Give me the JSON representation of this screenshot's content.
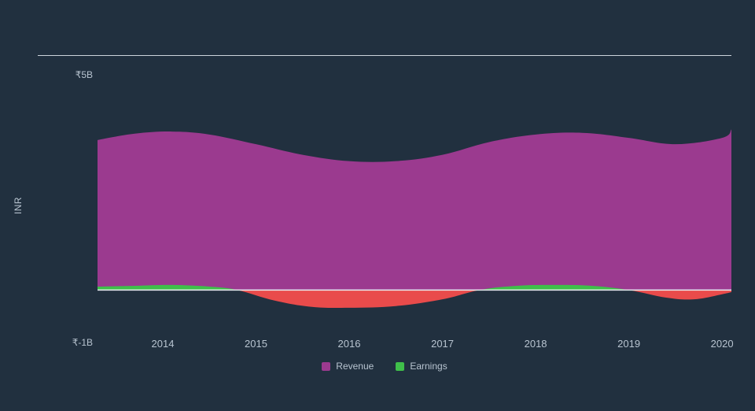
{
  "chart": {
    "type": "area",
    "background_color": "#21303f",
    "divider_color": "#cdd4db",
    "ylabel": "INR",
    "label_fontsize": 12,
    "label_color": "#b8c4d0",
    "ylim": [
      -1,
      5
    ],
    "ymin_label": "₹-1B",
    "ymax_label": "₹5B",
    "zero_line_color": "#e8edf1",
    "zero_line_width": 1.5,
    "x_years": [
      2014,
      2015,
      2016,
      2017,
      2018,
      2019,
      2020
    ],
    "x_range": [
      2013.3,
      2020.1
    ],
    "series": [
      {
        "name": "Revenue",
        "color": "#9b3a8f",
        "data": [
          {
            "x": 2013.3,
            "y": 3.55
          },
          {
            "x": 2013.7,
            "y": 3.7
          },
          {
            "x": 2014.1,
            "y": 3.75
          },
          {
            "x": 2014.5,
            "y": 3.68
          },
          {
            "x": 2015.0,
            "y": 3.45
          },
          {
            "x": 2015.5,
            "y": 3.2
          },
          {
            "x": 2016.0,
            "y": 3.05
          },
          {
            "x": 2016.5,
            "y": 3.05
          },
          {
            "x": 2017.0,
            "y": 3.2
          },
          {
            "x": 2017.5,
            "y": 3.5
          },
          {
            "x": 2018.0,
            "y": 3.68
          },
          {
            "x": 2018.5,
            "y": 3.72
          },
          {
            "x": 2019.0,
            "y": 3.6
          },
          {
            "x": 2019.5,
            "y": 3.45
          },
          {
            "x": 2020.0,
            "y": 3.6
          },
          {
            "x": 2020.1,
            "y": 3.8
          }
        ]
      },
      {
        "name": "Earnings",
        "color_positive": "#3fbf4a",
        "color_negative": "#e94b4b",
        "data": [
          {
            "x": 2013.3,
            "y": 0.08
          },
          {
            "x": 2013.7,
            "y": 0.1
          },
          {
            "x": 2014.1,
            "y": 0.12
          },
          {
            "x": 2014.5,
            "y": 0.08
          },
          {
            "x": 2014.8,
            "y": 0.0
          },
          {
            "x": 2015.2,
            "y": -0.25
          },
          {
            "x": 2015.6,
            "y": -0.4
          },
          {
            "x": 2016.0,
            "y": -0.42
          },
          {
            "x": 2016.5,
            "y": -0.38
          },
          {
            "x": 2017.0,
            "y": -0.22
          },
          {
            "x": 2017.4,
            "y": 0.0
          },
          {
            "x": 2017.8,
            "y": 0.1
          },
          {
            "x": 2018.2,
            "y": 0.12
          },
          {
            "x": 2018.6,
            "y": 0.1
          },
          {
            "x": 2019.0,
            "y": 0.0
          },
          {
            "x": 2019.4,
            "y": -0.18
          },
          {
            "x": 2019.7,
            "y": -0.22
          },
          {
            "x": 2020.0,
            "y": -0.1
          },
          {
            "x": 2020.1,
            "y": -0.05
          }
        ]
      }
    ],
    "legend": [
      {
        "label": "Revenue",
        "color": "#9b3a8f"
      },
      {
        "label": "Earnings",
        "color": "#3fbf4a"
      }
    ]
  }
}
